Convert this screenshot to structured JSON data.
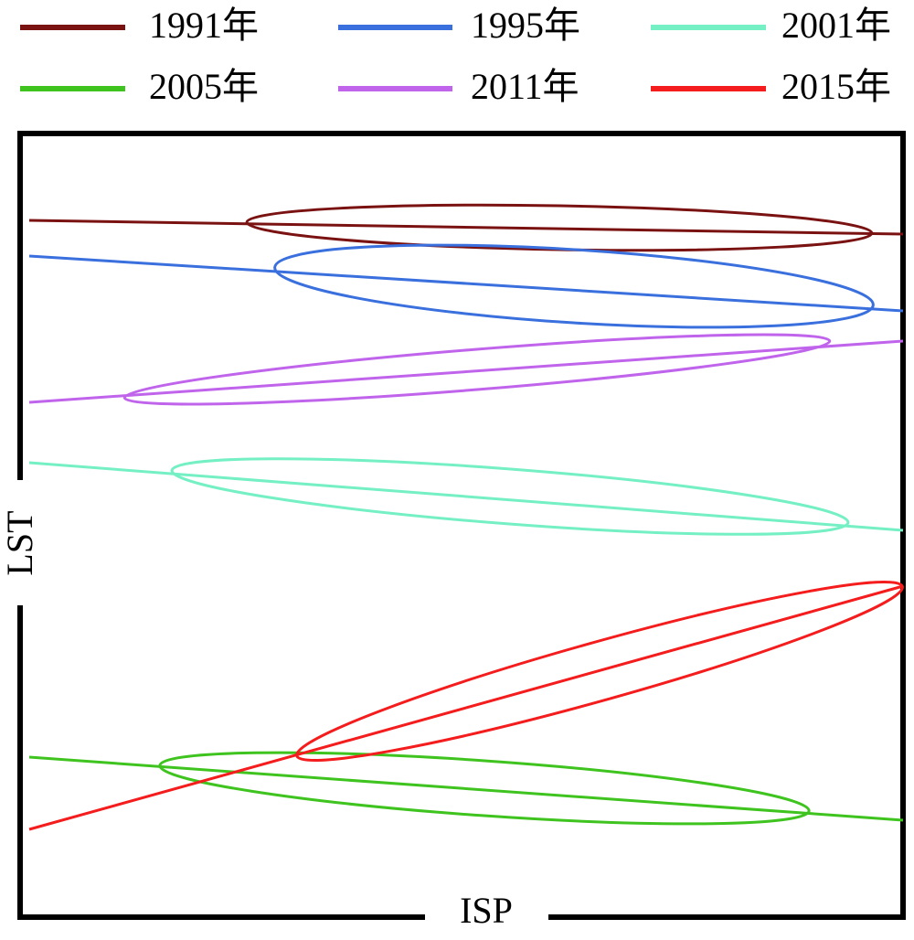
{
  "legend": [
    {
      "label": "1991年",
      "color": "#7b1212"
    },
    {
      "label": "1995年",
      "color": "#3a6fde"
    },
    {
      "label": "2001年",
      "color": "#74f0c4"
    },
    {
      "label": "2005年",
      "color": "#3fc41f"
    },
    {
      "label": "2011年",
      "color": "#c064ec"
    },
    {
      "label": "2015年",
      "color": "#f41c1c"
    }
  ],
  "axes": {
    "x_label": "ISP",
    "y_label": "LST"
  }
}
